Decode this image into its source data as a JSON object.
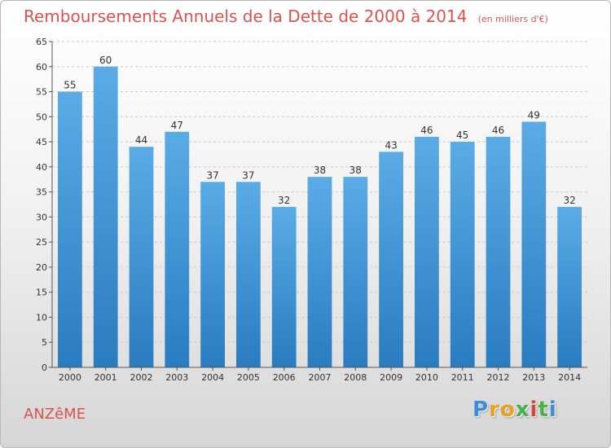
{
  "header": {
    "title": "Remboursements Annuels de la Dette de 2000 à 2014",
    "subtitle": "(en milliers d'€)"
  },
  "footer": {
    "commune": "ANZêME",
    "brand_letters": [
      "P",
      "r",
      "o",
      "x",
      "i",
      "t",
      "i"
    ]
  },
  "colors": {
    "bar_top": "#5aabe6",
    "bar_bottom": "#2a7cc0",
    "title": "#d9544f",
    "brand": [
      "#3a8fd6",
      "#e8a020",
      "#e8a020",
      "#4ab04a",
      "#d94040",
      "#4ab04a",
      "#3a8fd6"
    ]
  },
  "chart_data": {
    "type": "bar",
    "categories": [
      "2000",
      "2001",
      "2002",
      "2003",
      "2004",
      "2005",
      "2006",
      "2007",
      "2008",
      "2009",
      "2010",
      "2011",
      "2012",
      "2013",
      "2014"
    ],
    "values": [
      55,
      60,
      44,
      47,
      37,
      37,
      32,
      38,
      38,
      43,
      46,
      45,
      46,
      49,
      32
    ],
    "title": "Remboursements Annuels de la Dette de 2000 à 2014",
    "xlabel": "",
    "ylabel": "",
    "ylim": [
      0,
      65
    ],
    "yticks": [
      0,
      5,
      10,
      15,
      20,
      25,
      30,
      35,
      40,
      45,
      50,
      55,
      60,
      65
    ],
    "grid": true,
    "data_labels": true
  }
}
